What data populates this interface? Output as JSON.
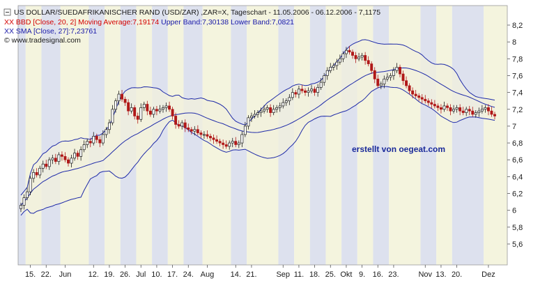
{
  "header": {
    "line1": "US DOLLAR/SUEDAFRIKANISCHER RAND (USD/ZAR) ,ZAR=X, Tageschart - 11.05.2006 - 06.12.2006 - 7,1175",
    "line2_parts": [
      {
        "text": "XX BBD [Close, 20, 2] Moving Average:7,19174",
        "color": "#d40000"
      },
      {
        "text": " Upper Band:7,30138",
        "color": "#1a1aa8"
      },
      {
        "text": " Lower Band:7,0821",
        "color": "#1a1aa8"
      }
    ],
    "line3": "XX SMA [Close, 27]:7,23761",
    "line4": "© www.tradesignal.com"
  },
  "watermark": "erstellt von oegeat.com",
  "colors": {
    "up": "#1a1a1a",
    "down": "#b01818",
    "bands": "#1e2aa8",
    "stripe_a": "#dde1ee",
    "stripe_b": "#f4f4de",
    "band_fill": "#f2f0dc",
    "watermark": "#1a2a9a"
  },
  "chart_data": {
    "type": "candlestick",
    "title": "US DOLLAR/SUEDAFRIKANISCHER RAND (USD/ZAR) ,ZAR=X, Tageschart - 11.05.2006 - 06.12.2006 - 7,1175",
    "ylim": [
      5.4,
      8.3
    ],
    "yticks": [
      5.6,
      5.8,
      6,
      6.2,
      6.4,
      6.6,
      6.8,
      7,
      7.2,
      7.4,
      7.6,
      7.8,
      8,
      8.2
    ],
    "ytick_labels": [
      "5,6",
      "5,8",
      "6",
      "6,2",
      "6,4",
      "6,6",
      "6,8",
      "7",
      "7,2",
      "7,4",
      "7,6",
      "7,8",
      "8",
      "8,2"
    ],
    "xtick_labels": [
      "15.",
      "22.",
      "Jun",
      "12.",
      "19.",
      "26.",
      "Jul",
      "10.",
      "17.",
      "24.",
      "Aug",
      "14.",
      "21.",
      "Sep",
      "11.",
      "18.",
      "25.",
      "Okt",
      "9.",
      "16.",
      "23.",
      "Nov",
      "13.",
      "20.",
      "Dez"
    ],
    "xtick_index": [
      3,
      8,
      14,
      23,
      28,
      33,
      38,
      43,
      48,
      53,
      59,
      68,
      73,
      83,
      88,
      93,
      98,
      103,
      108,
      113,
      118,
      128,
      133,
      138,
      148
    ],
    "num_bars": 151,
    "close": [
      6.06,
      6.15,
      6.22,
      6.38,
      6.45,
      6.42,
      6.5,
      6.55,
      6.52,
      6.6,
      6.62,
      6.58,
      6.66,
      6.64,
      6.6,
      6.56,
      6.62,
      6.68,
      6.64,
      6.72,
      6.78,
      6.82,
      6.8,
      6.88,
      6.84,
      6.8,
      6.9,
      6.96,
      7.04,
      7.2,
      7.3,
      7.38,
      7.32,
      7.28,
      7.18,
      7.22,
      7.12,
      7.08,
      7.22,
      7.26,
      7.18,
      7.14,
      7.2,
      7.18,
      7.2,
      7.22,
      7.24,
      7.2,
      7.12,
      7.02,
      7.0,
      7.04,
      6.98,
      6.96,
      6.94,
      6.96,
      6.92,
      6.9,
      6.9,
      6.88,
      6.86,
      6.84,
      6.82,
      6.8,
      6.78,
      6.76,
      6.8,
      6.82,
      6.78,
      6.8,
      6.9,
      7.0,
      7.1,
      7.12,
      7.14,
      7.16,
      7.18,
      7.2,
      7.22,
      7.16,
      7.2,
      7.22,
      7.24,
      7.28,
      7.3,
      7.34,
      7.4,
      7.38,
      7.44,
      7.42,
      7.4,
      7.42,
      7.44,
      7.4,
      7.46,
      7.52,
      7.6,
      7.66,
      7.7,
      7.72,
      7.76,
      7.8,
      7.86,
      7.9,
      7.88,
      7.84,
      7.8,
      7.82,
      7.84,
      7.78,
      7.74,
      7.66,
      7.56,
      7.48,
      7.5,
      7.56,
      7.58,
      7.6,
      7.66,
      7.7,
      7.62,
      7.54,
      7.48,
      7.42,
      7.38,
      7.36,
      7.34,
      7.32,
      7.3,
      7.28,
      7.26,
      7.24,
      7.22,
      7.2,
      7.24,
      7.22,
      7.18,
      7.2,
      7.22,
      7.18,
      7.16,
      7.2,
      7.18,
      7.14,
      7.16,
      7.18,
      7.2,
      7.22,
      7.18,
      7.14,
      7.12
    ],
    "moving_average_label": "Moving Average:7,19174",
    "upper_band_label": "Upper Band:7,30138",
    "lower_band_label": "Lower Band:7,0821",
    "sma_label": "SMA [Close, 27]:7,23761",
    "grid": false,
    "legend": "top-left"
  }
}
